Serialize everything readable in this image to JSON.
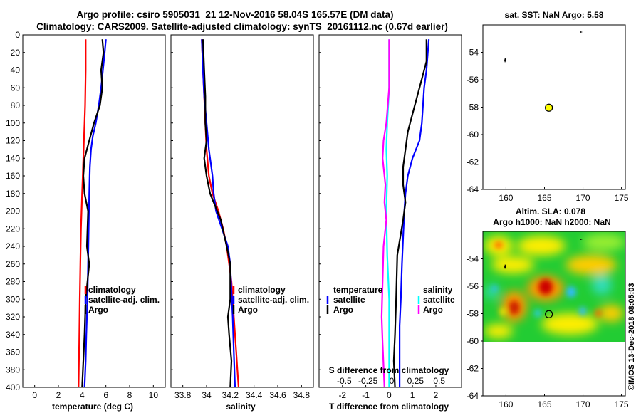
{
  "title_line1": "Argo profile: csiro 5905031_21 12-Nov-2016 58.04S 165.57E (DM data)",
  "title_line2": "Climatology: CARS2009. Satellite-adjusted climatology: synTS_20161112.nc (0.67d earlier)",
  "colors": {
    "climatology": "#ff0000",
    "satellite": "#0000ff",
    "argo": "#000000",
    "sat_sal": "#00ffff",
    "argo_sal": "#ff00ff",
    "dot": "#ffff00"
  },
  "chart_data": [
    {
      "type": "line",
      "xlabel": "temperature (deg C)",
      "ylabel": "",
      "xlim": [
        -1,
        11
      ],
      "ylim": [
        0,
        400
      ],
      "xticks": [
        "0",
        "2",
        "4",
        "6",
        "8",
        "10"
      ],
      "yticks": [
        "0",
        "20",
        "40",
        "60",
        "80",
        "100",
        "120",
        "140",
        "160",
        "180",
        "200",
        "220",
        "240",
        "260",
        "280",
        "300",
        "320",
        "340",
        "360",
        "380",
        "400"
      ],
      "legend": [
        "climatology",
        "satellite-adj. clim.",
        "Argo"
      ],
      "series": [
        {
          "name": "climatology",
          "x": [
            4.3,
            4.3,
            4.25,
            4.2,
            4.15,
            4.1,
            4.05,
            4.0,
            3.95,
            3.9,
            3.85,
            3.8,
            3.75,
            3.7
          ],
          "y": [
            5,
            40,
            80,
            100,
            120,
            140,
            160,
            180,
            200,
            220,
            260,
            300,
            350,
            400
          ]
        },
        {
          "name": "satellite-adj. clim.",
          "x": [
            6.0,
            5.9,
            5.75,
            5.6,
            5.4,
            5.15,
            4.9,
            4.75,
            4.65,
            4.6,
            4.55,
            4.5,
            4.45,
            4.35,
            4.3,
            4.2
          ],
          "y": [
            5,
            20,
            40,
            60,
            80,
            100,
            115,
            130,
            150,
            180,
            220,
            260,
            300,
            340,
            370,
            400
          ]
        },
        {
          "name": "Argo",
          "x": [
            5.7,
            5.8,
            5.6,
            5.7,
            5.5,
            5.0,
            4.6,
            4.2,
            4.1,
            4.2,
            4.5,
            4.4,
            4.6,
            4.3,
            4.2,
            4.1,
            4.0
          ],
          "y": [
            5,
            20,
            40,
            60,
            80,
            100,
            120,
            140,
            160,
            180,
            200,
            240,
            260,
            300,
            340,
            370,
            400
          ]
        }
      ]
    },
    {
      "type": "line",
      "xlabel": "salinity",
      "xlim": [
        33.7,
        34.9
      ],
      "ylim": [
        0,
        400
      ],
      "xticks": [
        "33.8",
        "34",
        "34.2",
        "34.4",
        "34.6",
        "34.8"
      ],
      "legend": [
        "climatology",
        "satellite-adj. clim.",
        "Argo"
      ],
      "series": [
        {
          "name": "climatology",
          "x": [
            33.96,
            33.97,
            33.98,
            33.99,
            34.0,
            34.02,
            34.05,
            34.1,
            34.14,
            34.17,
            34.19,
            34.21,
            34.23,
            34.25,
            34.26,
            34.27
          ],
          "y": [
            5,
            40,
            70,
            100,
            130,
            160,
            180,
            200,
            220,
            240,
            260,
            280,
            320,
            360,
            380,
            400
          ]
        },
        {
          "name": "satellite-adj. clim.",
          "x": [
            33.96,
            33.97,
            33.98,
            34.0,
            34.02,
            34.05,
            34.06,
            34.08,
            34.13,
            34.18,
            34.2,
            34.21,
            34.22,
            34.23,
            34.24
          ],
          "y": [
            5,
            40,
            70,
            100,
            130,
            160,
            180,
            200,
            220,
            240,
            260,
            290,
            320,
            360,
            400
          ]
        },
        {
          "name": "Argo",
          "x": [
            33.97,
            33.98,
            33.99,
            33.99,
            34.0,
            33.98,
            34.0,
            34.03,
            34.12,
            34.17,
            34.2,
            34.2,
            34.18,
            34.19,
            34.21,
            34.2
          ],
          "y": [
            5,
            40,
            70,
            100,
            120,
            140,
            160,
            180,
            210,
            240,
            260,
            300,
            320,
            340,
            370,
            400
          ]
        }
      ]
    },
    {
      "type": "line",
      "xlabel": "T difference from climatology",
      "xlim": [
        -3,
        3.1
      ],
      "ylim": [
        0,
        400
      ],
      "xticks": [
        "-2",
        "-1",
        "0",
        "1",
        "2"
      ],
      "s_axis_label": "S difference from climatology",
      "s_ticks": [
        "-0.5",
        "-0.25",
        "0",
        "0.25",
        "0.5"
      ],
      "legend_temperature": [
        "temperature",
        "satellite",
        "Argo"
      ],
      "legend_salinity": [
        "salinity",
        "satellite",
        "Argo"
      ],
      "series": [
        {
          "name": "T satellite",
          "x": [
            1.7,
            1.6,
            1.5,
            1.45,
            1.4,
            1.3,
            1.0,
            0.8,
            0.7,
            0.65,
            0.6,
            0.55,
            0.5,
            0.45,
            0.45,
            0.45,
            0.45
          ],
          "y": [
            5,
            40,
            60,
            80,
            100,
            120,
            140,
            160,
            180,
            200,
            230,
            260,
            300,
            330,
            360,
            380,
            400
          ]
        },
        {
          "name": "T Argo",
          "x": [
            1.6,
            1.6,
            1.4,
            1.2,
            1.0,
            0.8,
            0.7,
            0.6,
            0.6,
            0.7,
            0.6,
            0.35,
            0.3,
            0.25,
            0.2,
            0.25
          ],
          "y": [
            5,
            30,
            50,
            70,
            90,
            110,
            130,
            150,
            170,
            190,
            210,
            250,
            300,
            340,
            370,
            400
          ]
        },
        {
          "name": "S satellite",
          "x": [
            0.0,
            0.0,
            -0.02,
            -0.03,
            -0.02,
            -0.03,
            -0.02,
            0.0,
            0.0,
            0.0
          ],
          "y": [
            5,
            60,
            100,
            130,
            160,
            200,
            250,
            300,
            350,
            400
          ]
        },
        {
          "name": "S Argo",
          "x": [
            0.0,
            0.0,
            -0.03,
            -0.06,
            -0.07,
            -0.04,
            -0.05,
            -0.03,
            -0.06,
            -0.07,
            -0.08,
            -0.07,
            -0.05
          ],
          "y": [
            5,
            60,
            100,
            120,
            140,
            170,
            190,
            210,
            240,
            280,
            320,
            350,
            400
          ]
        }
      ]
    },
    {
      "type": "scatter",
      "title": "sat. SST: NaN Argo: 5.58",
      "xlim": [
        157,
        175.5
      ],
      "ylim": [
        -64,
        -52
      ],
      "xticks": [
        "160",
        "165",
        "170",
        "175"
      ],
      "yticks": [
        "-54",
        "-56",
        "-58",
        "-60",
        "-62",
        "-64"
      ],
      "points": [
        {
          "x": 165.57,
          "y": -58.04
        }
      ]
    },
    {
      "type": "heatmap",
      "title_line1": "Altim. SLA: 0.078",
      "title_line2": "Argo h1000: NaN h2000: NaN",
      "xlim": [
        157,
        175.5
      ],
      "ylim": [
        -64,
        -52
      ],
      "xticks": [
        "160",
        "165",
        "170",
        "175"
      ],
      "yticks": [
        "-54",
        "-56",
        "-58",
        "-60",
        "-62",
        "-64"
      ],
      "points": [
        {
          "x": 165.57,
          "y": -58.04
        }
      ]
    }
  ],
  "watermark": "©IMOS 13-Dec-2018 08:05:03"
}
